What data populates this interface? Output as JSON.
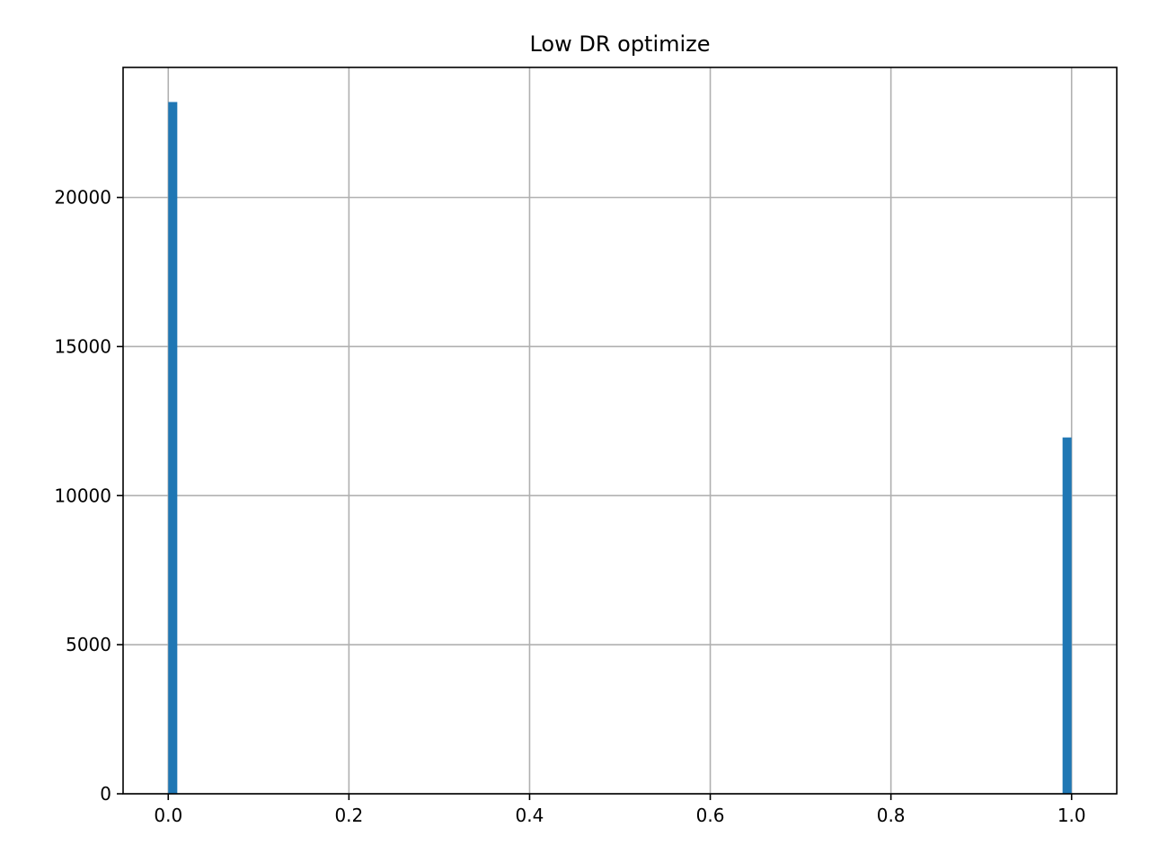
{
  "chart_data": {
    "type": "bar",
    "title": "Low DR optimize",
    "xlabel": "",
    "ylabel": "",
    "xlim": [
      -0.05,
      1.05
    ],
    "ylim": [
      0,
      24360
    ],
    "x_ticks": [
      0.0,
      0.2,
      0.4,
      0.6,
      0.8,
      1.0
    ],
    "x_tick_labels": [
      "0.0",
      "0.2",
      "0.4",
      "0.6",
      "0.8",
      "1.0"
    ],
    "y_ticks": [
      0,
      5000,
      10000,
      15000,
      20000
    ],
    "y_tick_labels": [
      "0",
      "5000",
      "10000",
      "15000",
      "20000"
    ],
    "grid": true,
    "bin_width": 0.01,
    "bars": [
      {
        "x0": 0.0,
        "x1": 0.01,
        "value": 23200
      },
      {
        "x0": 0.99,
        "x1": 1.0,
        "value": 11950
      }
    ],
    "bar_color": "#1f77b4"
  }
}
